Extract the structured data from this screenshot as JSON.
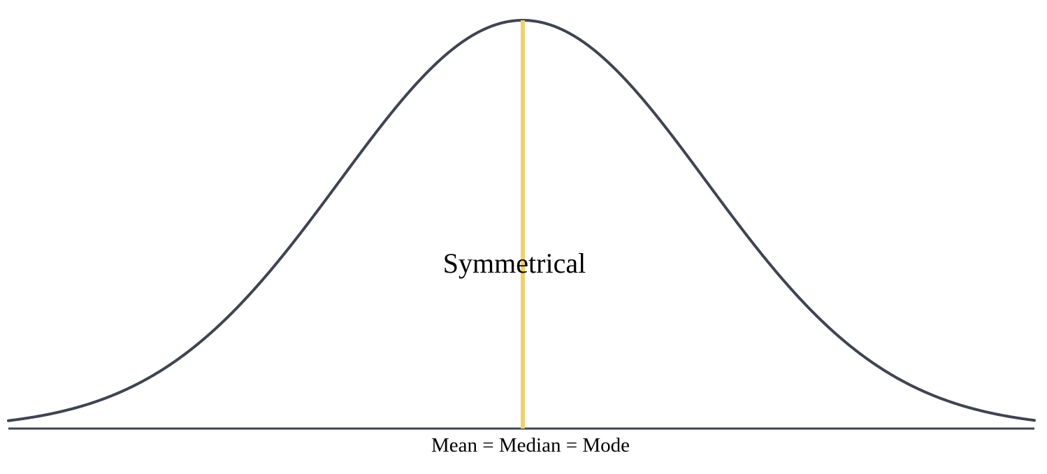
{
  "diagram": {
    "title": "Symmetrical",
    "axis_caption": "Mean = Median = Mode"
  },
  "colors": {
    "curve": "#3f4451",
    "axis": "#3f4451",
    "center_line": "#f1d06b",
    "background": "#ffffff"
  }
}
